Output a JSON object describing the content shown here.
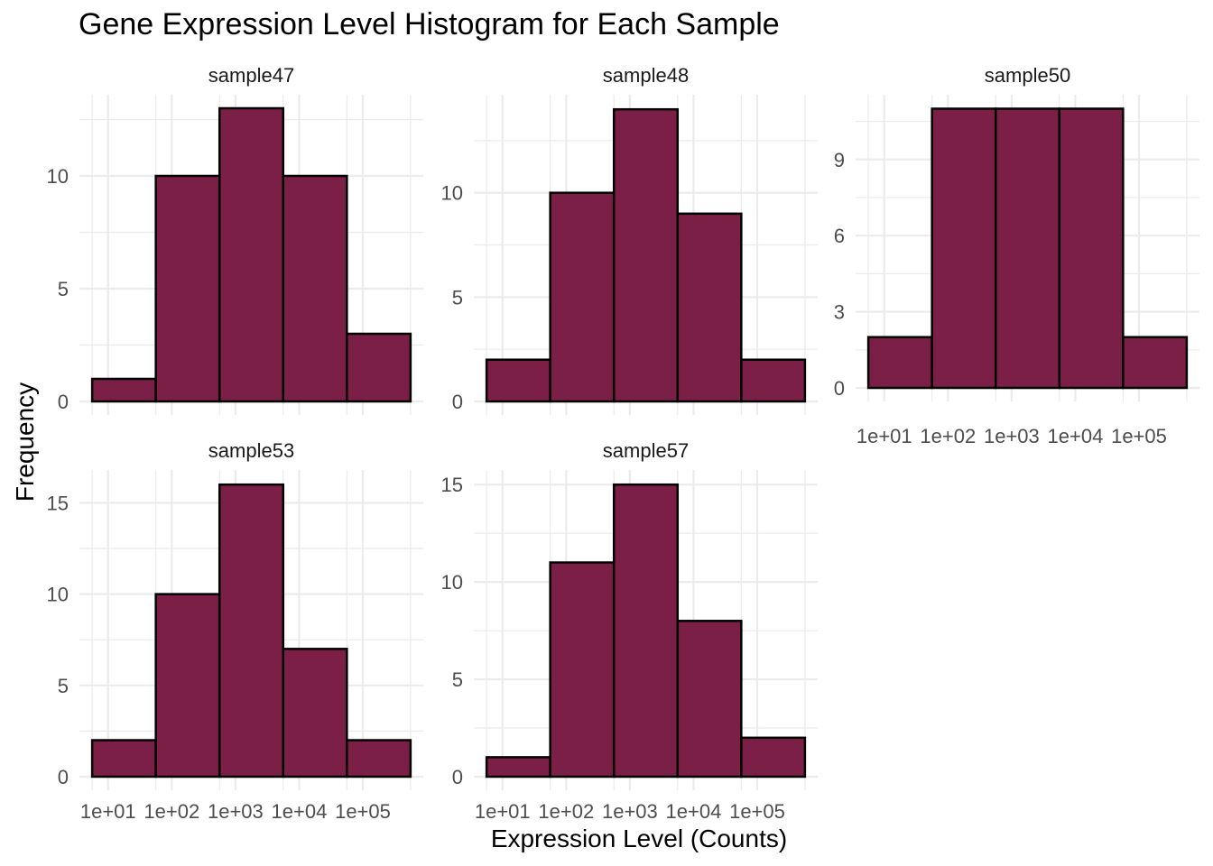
{
  "chart_data": {
    "type": "bar",
    "title": "Gene Expression Level Histogram for Each Sample",
    "xlabel": "Expression Level (Counts)",
    "ylabel": "Frequency",
    "x_scale": "log10",
    "x_tick_labels": [
      "1e+01",
      "1e+02",
      "1e+03",
      "1e+04",
      "1e+05"
    ],
    "x_tick_values": [
      10,
      100,
      1000,
      10000,
      100000
    ],
    "bin_edges": [
      5.62,
      56.2,
      562,
      5620,
      56200,
      562000
    ],
    "grid": true,
    "bar_color": "#7b1f46",
    "bar_outline": "#000000",
    "panels": [
      {
        "name": "sample47",
        "values": [
          1,
          10,
          13,
          10,
          3
        ],
        "ylim": [
          0,
          13.6
        ],
        "yticks": [
          0,
          5,
          10
        ],
        "show_x_ticks": false
      },
      {
        "name": "sample48",
        "values": [
          2,
          10,
          14,
          9,
          2
        ],
        "ylim": [
          0,
          14.7
        ],
        "yticks": [
          0,
          5,
          10
        ],
        "show_x_ticks": false
      },
      {
        "name": "sample50",
        "values": [
          2,
          11,
          11,
          11,
          2
        ],
        "ylim": [
          0,
          11.55
        ],
        "yticks": [
          0,
          3,
          6,
          9
        ],
        "show_x_ticks": true
      },
      {
        "name": "sample53",
        "values": [
          2,
          10,
          16,
          7,
          2
        ],
        "ylim": [
          0,
          16.8
        ],
        "yticks": [
          0,
          5,
          10,
          15
        ],
        "show_x_ticks": true
      },
      {
        "name": "sample57",
        "values": [
          1,
          11,
          15,
          8,
          2
        ],
        "ylim": [
          0,
          15.75
        ],
        "yticks": [
          0,
          5,
          10,
          15
        ],
        "show_x_ticks": true
      }
    ]
  }
}
